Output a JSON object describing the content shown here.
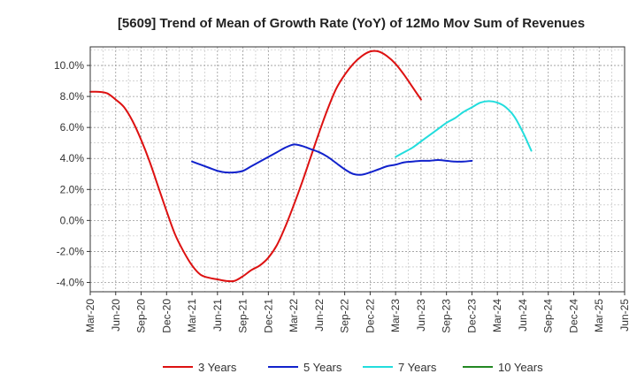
{
  "chart_data": {
    "type": "line",
    "title": "[5609]  Trend of Mean of Growth Rate (YoY) of 12Mo Mov Sum of Revenues",
    "xlabel": "",
    "ylabel": "",
    "ylim": [
      -4.6,
      11.2
    ],
    "y_ticks": [
      -4.0,
      -2.0,
      0.0,
      2.0,
      4.0,
      6.0,
      8.0,
      10.0
    ],
    "y_tick_labels": [
      "-4.0%",
      "-2.0%",
      "0.0%",
      "2.0%",
      "4.0%",
      "6.0%",
      "8.0%",
      "10.0%"
    ],
    "x_tick_labels": [
      "Mar-20",
      "Jun-20",
      "Sep-20",
      "Dec-20",
      "Mar-21",
      "Jun-21",
      "Sep-21",
      "Dec-21",
      "Mar-22",
      "Jun-22",
      "Sep-22",
      "Dec-22",
      "Mar-23",
      "Jun-23",
      "Sep-23",
      "Dec-23",
      "Mar-24",
      "Jun-24",
      "Sep-24",
      "Dec-24",
      "Mar-25",
      "Jun-25"
    ],
    "grid": true,
    "legend_position": "bottom",
    "series": [
      {
        "name": "3 Years",
        "color": "#dd1111",
        "start_index": 0,
        "values": [
          8.3,
          8.3,
          8.2,
          7.8,
          7.3,
          6.4,
          5.2,
          3.8,
          2.2,
          0.6,
          -0.9,
          -2.0,
          -2.9,
          -3.5,
          -3.7,
          -3.8,
          -3.9,
          -3.9,
          -3.6,
          -3.2,
          -2.9,
          -2.4,
          -1.6,
          -0.4,
          1.0,
          2.5,
          4.1,
          5.7,
          7.2,
          8.5,
          9.4,
          10.1,
          10.6,
          10.9,
          10.9,
          10.6,
          10.1,
          9.4,
          8.6,
          7.8
        ]
      },
      {
        "name": "5 Years",
        "color": "#1122cc",
        "start_index": 12,
        "values": [
          3.8,
          3.6,
          3.4,
          3.2,
          3.1,
          3.1,
          3.2,
          3.5,
          3.8,
          4.1,
          4.4,
          4.7,
          4.9,
          4.8,
          4.6,
          4.4,
          4.1,
          3.7,
          3.3,
          3.0,
          2.95,
          3.1,
          3.3,
          3.5,
          3.6,
          3.75,
          3.8,
          3.85,
          3.85,
          3.9,
          3.85,
          3.8,
          3.8,
          3.85
        ]
      },
      {
        "name": "7 Years",
        "color": "#22dddd",
        "start_index": 36,
        "values": [
          4.1,
          4.4,
          4.7,
          5.1,
          5.5,
          5.9,
          6.3,
          6.6,
          7.0,
          7.3,
          7.6,
          7.7,
          7.6,
          7.3,
          6.7,
          5.7,
          4.5
        ]
      },
      {
        "name": "10 Years",
        "color": "#228822",
        "start_index": 0,
        "values": []
      }
    ]
  }
}
